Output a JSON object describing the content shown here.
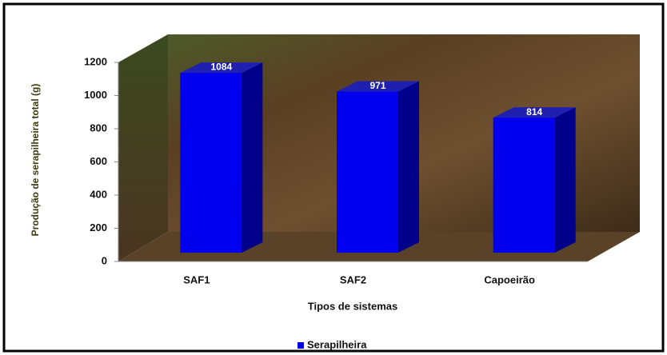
{
  "chart_data": {
    "type": "bar3d",
    "y_label": "Produção de serapilheira total (g)",
    "x_label": "Tipos de sistemas",
    "categories": [
      "SAF1",
      "SAF2",
      "Capoeirão"
    ],
    "series": [
      {
        "name": "Serapilheira",
        "color": "#0000ee",
        "values": [
          1084,
          971,
          814
        ]
      }
    ],
    "ylim": [
      0,
      1200
    ],
    "yticks": [
      0,
      200,
      400,
      600,
      800,
      1000,
      1200
    ]
  }
}
